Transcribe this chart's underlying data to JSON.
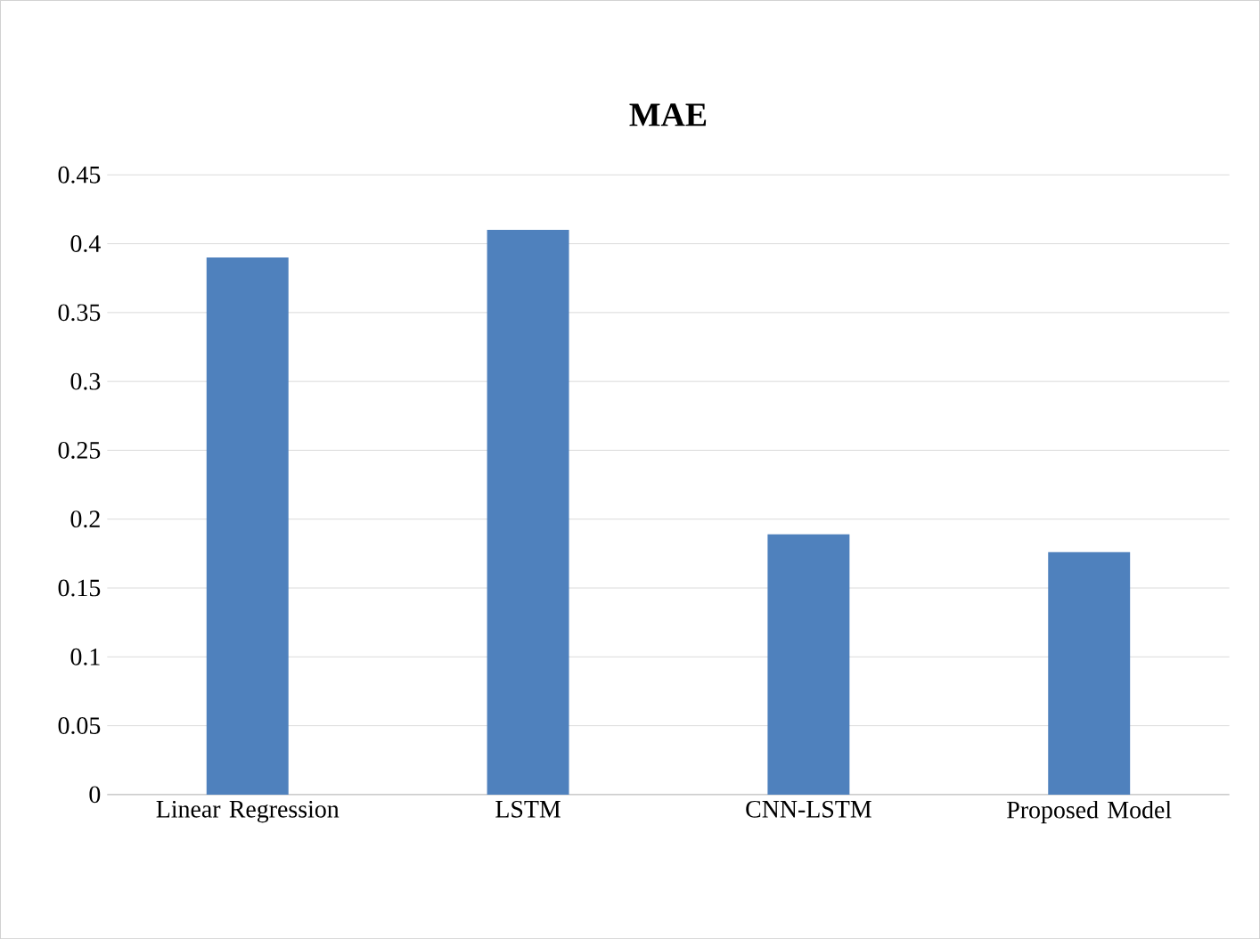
{
  "chart_data": {
    "type": "bar",
    "title": "MAE",
    "categories": [
      "Linear Regression",
      "LSTM",
      "CNN-LSTM",
      "Proposed Model"
    ],
    "values": [
      0.39,
      0.41,
      0.189,
      0.176
    ],
    "color": "#4f81bd",
    "ylim": [
      0,
      0.45
    ],
    "yticks": [
      0,
      0.05,
      0.1,
      0.15,
      0.2,
      0.25,
      0.3,
      0.35,
      0.4,
      0.45
    ],
    "grid": "y"
  }
}
